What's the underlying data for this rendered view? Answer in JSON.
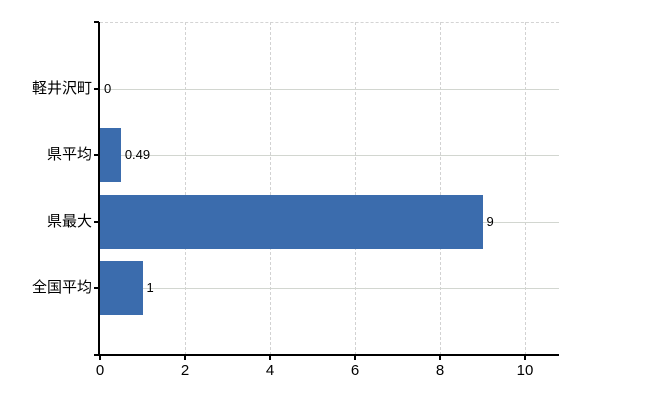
{
  "chart_data": {
    "type": "bar",
    "orientation": "horizontal",
    "title": "",
    "xlabel": "",
    "ylabel": "",
    "categories": [
      "軽井沢町",
      "県平均",
      "県最大",
      "全国平均"
    ],
    "values": [
      0,
      0.49,
      9,
      1
    ],
    "value_labels": [
      "0",
      "0.49",
      "9",
      "1"
    ],
    "xlim": [
      0,
      10.8
    ],
    "xticks": [
      0,
      2,
      4,
      6,
      8,
      10
    ],
    "xtick_labels": [
      "0",
      "2",
      "4",
      "6",
      "8",
      "10"
    ],
    "grid": "on",
    "legend": "none",
    "colors": {
      "bar": "#3b6cad",
      "grid_horizontal": "#d2d6d0",
      "grid_vertical": "#d2d2d2",
      "axis": "#000000",
      "background": "#ffffff",
      "label_text": "#000000"
    }
  }
}
